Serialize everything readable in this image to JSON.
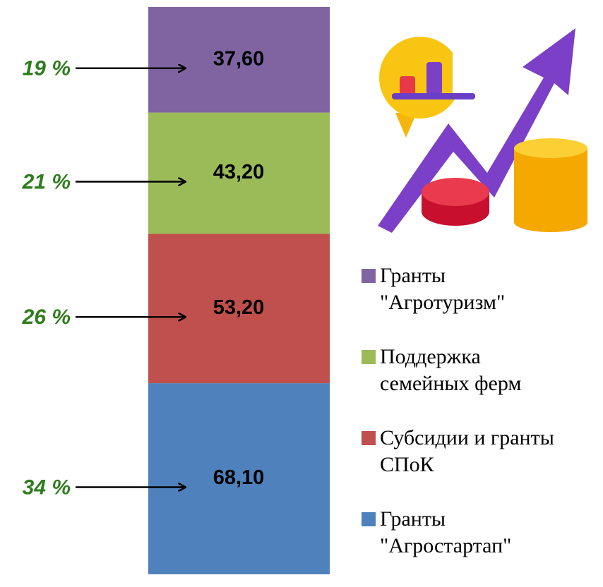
{
  "chart_data": {
    "type": "stacked_bar",
    "categories": [
      null
    ],
    "series": [
      {
        "name": "Гранты\n\"Агростартап\"",
        "color": "#4f81bd",
        "values": [
          68.1
        ],
        "value_labels": [
          "68,10"
        ],
        "share_label": "34 %"
      },
      {
        "name": "Субсидии и гранты\nСПоК",
        "color": "#c0504d",
        "values": [
          53.2
        ],
        "value_labels": [
          "53,20"
        ],
        "share_label": "26 %"
      },
      {
        "name": "Поддержка\nсемейных ферм",
        "color": "#9bbb59",
        "values": [
          43.2
        ],
        "value_labels": [
          "43,20"
        ],
        "share_label": "21 %"
      },
      {
        "name": "Гранты\n\"Агротуризм\"",
        "color": "#8064a2",
        "values": [
          37.6
        ],
        "value_labels": [
          "37,60"
        ],
        "share_label": "19 %"
      }
    ],
    "ylim": [
      0,
      202.1
    ],
    "legend": "right"
  }
}
